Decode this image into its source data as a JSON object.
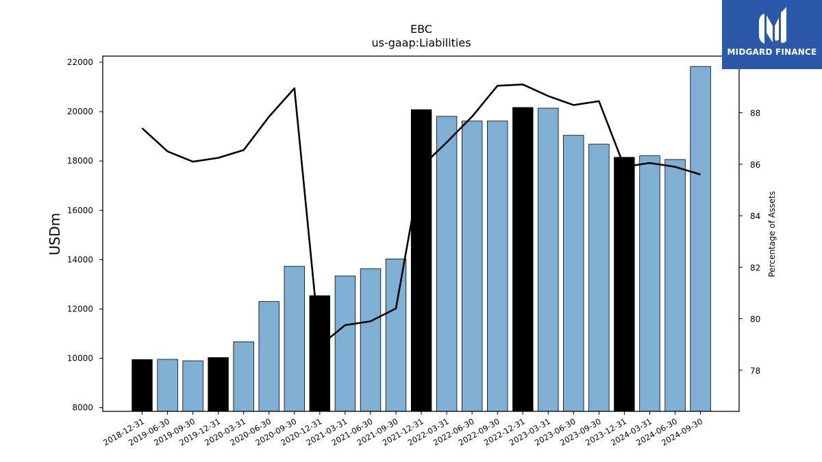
{
  "brand": {
    "name": "MIDGARD FINANCE",
    "color": "#2b58a9",
    "icon": "midgard-logo-icon"
  },
  "chart_data": {
    "type": "bar",
    "title": "EBC",
    "subtitle": "us-gaap:Liabilities",
    "ylabel": "USDm",
    "y2label": "Percentage of Assets",
    "ylim": [
      7850,
      22250
    ],
    "y2lim": [
      76.4,
      90.2
    ],
    "yticks": [
      8000,
      10000,
      12000,
      14000,
      16000,
      18000,
      20000,
      22000
    ],
    "y2ticks": [
      78,
      80,
      82,
      84,
      86,
      88
    ],
    "categories": [
      "2018-12-31",
      "2019-06-30",
      "2019-09-30",
      "2019-12-31",
      "2020-03-31",
      "2020-06-30",
      "2020-09-30",
      "2020-12-31",
      "2021-03-31",
      "2021-06-30",
      "2021-09-30",
      "2021-12-31",
      "2022-03-31",
      "2022-06-30",
      "2022-09-30",
      "2022-12-31",
      "2023-03-31",
      "2023-06-30",
      "2023-09-30",
      "2023-12-31",
      "2024-03-31",
      "2024-06-30",
      "2024-09-30"
    ],
    "series": [
      {
        "type": "bar",
        "axis": "left",
        "values": [
          9950,
          9960,
          9900,
          10030,
          10670,
          12300,
          13730,
          12540,
          13340,
          13630,
          14030,
          20080,
          19810,
          19620,
          19620,
          20170,
          20140,
          19040,
          18680,
          18150,
          18210,
          18060,
          21830
        ],
        "annual": [
          true,
          false,
          false,
          true,
          false,
          false,
          false,
          true,
          false,
          false,
          false,
          true,
          false,
          false,
          false,
          true,
          false,
          false,
          false,
          true,
          false,
          false,
          false
        ]
      },
      {
        "type": "line",
        "axis": "right",
        "values": [
          87.4,
          86.5,
          86.1,
          86.25,
          86.55,
          87.85,
          88.95,
          78.95,
          79.75,
          79.9,
          80.4,
          85.9,
          86.85,
          87.85,
          89.05,
          89.1,
          88.65,
          88.3,
          88.45,
          85.9,
          86.05,
          85.9,
          85.6
        ]
      }
    ],
    "colors": {
      "bar_annual": "#000000",
      "bar_quarter": "#7fb0d4",
      "line": "#000000"
    },
    "grid": false
  }
}
